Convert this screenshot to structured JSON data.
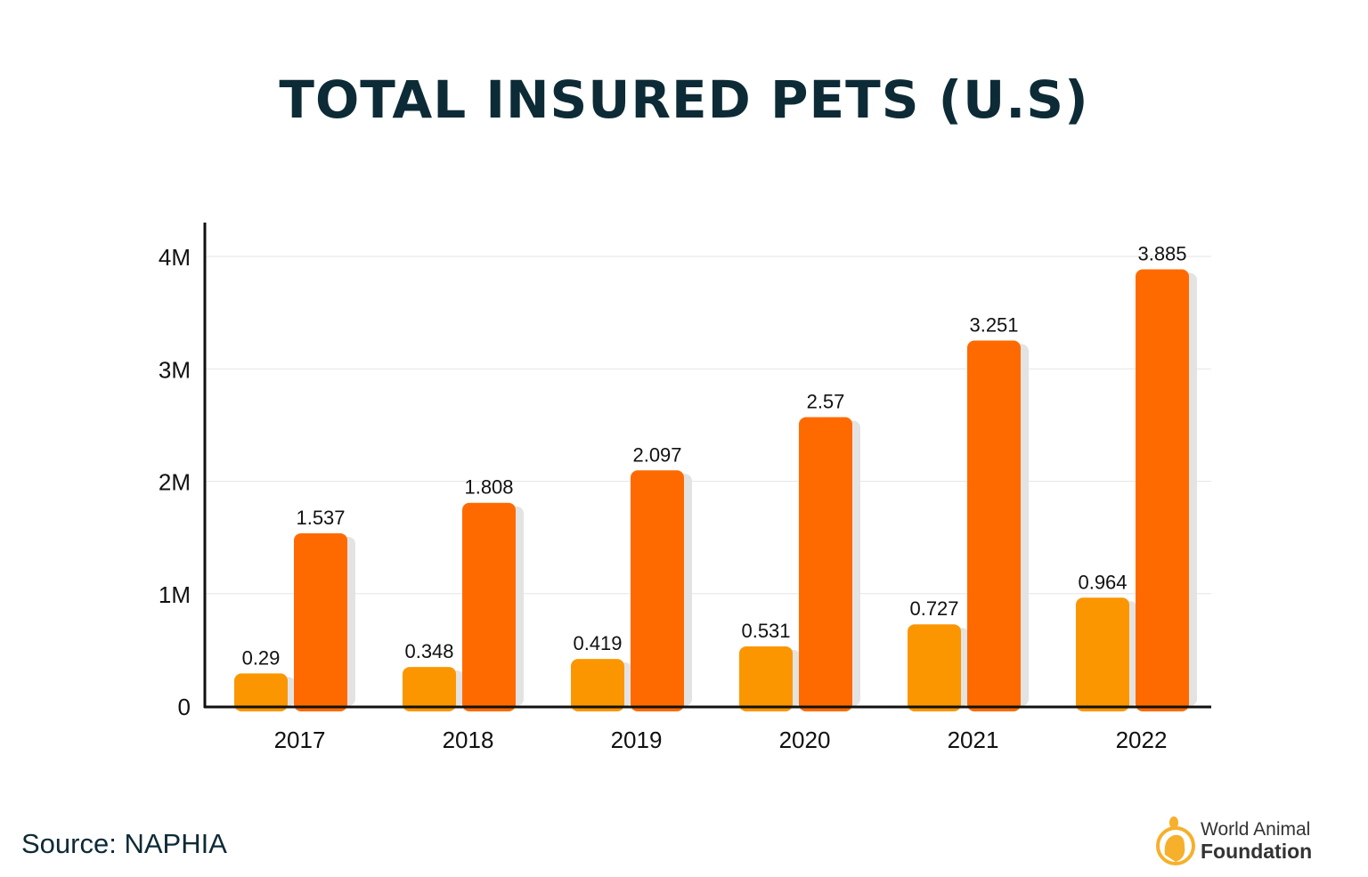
{
  "chart_data": {
    "type": "bar",
    "title": "TOTAL INSURED PETS (U.S)",
    "categories": [
      "2017",
      "2018",
      "2019",
      "2020",
      "2021",
      "2022"
    ],
    "series": [
      {
        "values": [
          0.29,
          0.348,
          0.419,
          0.531,
          0.727,
          0.964
        ],
        "color": "#fb9600"
      },
      {
        "values": [
          1.537,
          1.808,
          2.097,
          2.57,
          3.251,
          3.885
        ],
        "color": "#ff6a00"
      }
    ],
    "value_labels": [
      [
        "0.29",
        "0.348",
        "0.419",
        "0.531",
        "0.727",
        "0.964"
      ],
      [
        "1.537",
        "1.808",
        "2.097",
        "2.57",
        "3.251",
        "3.885"
      ]
    ],
    "yticks": [
      0,
      1,
      2,
      3,
      4
    ],
    "ytick_labels": [
      "0",
      "1M",
      "2M",
      "3M",
      "4M"
    ],
    "ylim": [
      0,
      4
    ],
    "grid": true,
    "xlabel": "",
    "ylabel": ""
  },
  "footer": {
    "source": "Source: NAPHIA"
  },
  "logo": {
    "line1": "World Animal",
    "line2": "Foundation"
  }
}
